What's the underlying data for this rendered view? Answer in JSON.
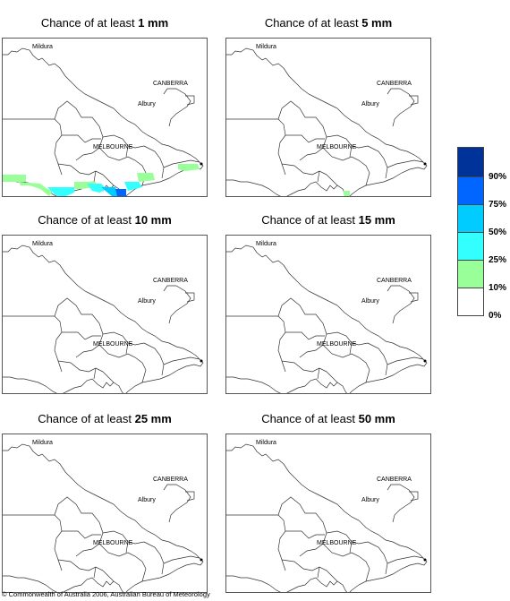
{
  "panels": [
    {
      "prefix": "Chance of at least ",
      "amount": "1 mm"
    },
    {
      "prefix": "Chance of at least ",
      "amount": "5 mm"
    },
    {
      "prefix": "Chance of at least ",
      "amount": "10 mm"
    },
    {
      "prefix": "Chance of at least ",
      "amount": "15 mm"
    },
    {
      "prefix": "Chance of at least ",
      "amount": "25 mm"
    },
    {
      "prefix": "Chance of at least ",
      "amount": "50 mm"
    }
  ],
  "places": {
    "mildura": "Mildura",
    "canberra": "CANBERRA",
    "albury": "Albury",
    "melbourne": "MELBOURNE"
  },
  "legend": {
    "labels": [
      "90%",
      "75%",
      "50%",
      "25%",
      "10%",
      "0%"
    ],
    "colors": [
      "#003399",
      "#0066ff",
      "#00ccff",
      "#33ffff",
      "#99ff99",
      "#ffffff"
    ]
  },
  "copyright": "© Commonwealth of Australia 2006, Australian Bureau of Meteorology"
}
